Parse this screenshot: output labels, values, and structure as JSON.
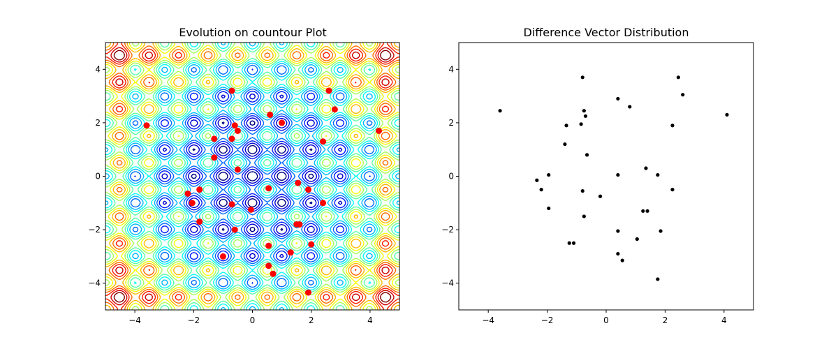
{
  "chart_data": [
    {
      "type": "contour",
      "title": "Evolution on countour Plot",
      "xlim": [
        -5,
        5
      ],
      "ylim": [
        -5,
        5
      ],
      "xticks": [
        -4,
        -2,
        0,
        2,
        4
      ],
      "yticks": [
        -4,
        -2,
        0,
        2,
        4
      ],
      "xtick_labels": [
        "−4",
        "−2",
        "0",
        "2",
        "4"
      ],
      "ytick_labels": [
        "−4",
        "−2",
        "0",
        "2",
        "4"
      ],
      "colormap": "jet",
      "background_color": "#ffffff",
      "point_color": "#ff0000",
      "points": [
        {
          "x": -3.6,
          "y": 1.9
        },
        {
          "x": -0.7,
          "y": 3.2
        },
        {
          "x": 2.6,
          "y": 3.2
        },
        {
          "x": 2.8,
          "y": 2.5
        },
        {
          "x": 4.3,
          "y": 1.7
        },
        {
          "x": 0.6,
          "y": 2.3
        },
        {
          "x": 1.0,
          "y": 2.0
        },
        {
          "x": -0.6,
          "y": 1.9
        },
        {
          "x": -0.5,
          "y": 1.7
        },
        {
          "x": -0.7,
          "y": 1.4
        },
        {
          "x": -1.3,
          "y": 1.4
        },
        {
          "x": 2.4,
          "y": 1.3
        },
        {
          "x": -1.3,
          "y": 0.7
        },
        {
          "x": -0.5,
          "y": 0.25
        },
        {
          "x": -2.2,
          "y": -0.65
        },
        {
          "x": -1.8,
          "y": -0.5
        },
        {
          "x": 0.55,
          "y": -0.45
        },
        {
          "x": 1.55,
          "y": -0.25
        },
        {
          "x": 1.9,
          "y": -0.5
        },
        {
          "x": -2.05,
          "y": -1.0
        },
        {
          "x": -0.7,
          "y": -1.05
        },
        {
          "x": 2.4,
          "y": -1.0
        },
        {
          "x": -1.8,
          "y": -1.7
        },
        {
          "x": -0.6,
          "y": -2.0
        },
        {
          "x": 1.5,
          "y": -1.8
        },
        {
          "x": 1.6,
          "y": -1.8
        },
        {
          "x": 0.55,
          "y": -2.6
        },
        {
          "x": 1.3,
          "y": -2.85
        },
        {
          "x": 2.0,
          "y": -2.55
        },
        {
          "x": -1.0,
          "y": -3.0
        },
        {
          "x": 0.55,
          "y": -3.35
        },
        {
          "x": 0.7,
          "y": -3.65
        },
        {
          "x": 1.9,
          "y": -4.35
        },
        {
          "x": -0.05,
          "y": -1.25
        }
      ]
    },
    {
      "type": "scatter",
      "title": "Difference Vector Distribution",
      "xlim": [
        -5,
        5
      ],
      "ylim": [
        -5,
        5
      ],
      "xticks": [
        -4,
        -2,
        0,
        2,
        4
      ],
      "yticks": [
        -4,
        -2,
        0,
        2,
        4
      ],
      "xtick_labels": [
        "−4",
        "−2",
        "0",
        "2",
        "4"
      ],
      "ytick_labels": [
        "−4",
        "−2",
        "0",
        "2",
        "4"
      ],
      "point_color": "#000000",
      "points": [
        {
          "x": -3.6,
          "y": 2.45
        },
        {
          "x": -0.8,
          "y": 3.7
        },
        {
          "x": 2.45,
          "y": 3.7
        },
        {
          "x": 2.6,
          "y": 3.05
        },
        {
          "x": 0.4,
          "y": 2.9
        },
        {
          "x": 0.8,
          "y": 2.6
        },
        {
          "x": -0.75,
          "y": 2.45
        },
        {
          "x": -0.7,
          "y": 2.25
        },
        {
          "x": 4.1,
          "y": 2.3
        },
        {
          "x": -1.35,
          "y": 1.9
        },
        {
          "x": -0.85,
          "y": 1.95
        },
        {
          "x": 2.25,
          "y": 1.9
        },
        {
          "x": -1.4,
          "y": 1.2
        },
        {
          "x": -0.65,
          "y": 0.8
        },
        {
          "x": 0.4,
          "y": 0.05
        },
        {
          "x": 1.35,
          "y": 0.3
        },
        {
          "x": 1.75,
          "y": 0.05
        },
        {
          "x": -1.95,
          "y": 0.05
        },
        {
          "x": -2.35,
          "y": -0.15
        },
        {
          "x": -2.2,
          "y": -0.5
        },
        {
          "x": -0.8,
          "y": -0.55
        },
        {
          "x": -0.2,
          "y": -0.75
        },
        {
          "x": 2.25,
          "y": -0.5
        },
        {
          "x": -1.95,
          "y": -1.2
        },
        {
          "x": -0.75,
          "y": -1.5
        },
        {
          "x": 1.25,
          "y": -1.3
        },
        {
          "x": 1.4,
          "y": -1.3
        },
        {
          "x": 1.85,
          "y": -2.05
        },
        {
          "x": 0.4,
          "y": -2.05
        },
        {
          "x": -1.25,
          "y": -2.5
        },
        {
          "x": -1.1,
          "y": -2.5
        },
        {
          "x": 1.05,
          "y": -2.35
        },
        {
          "x": 0.4,
          "y": -2.9
        },
        {
          "x": 0.55,
          "y": -3.15
        },
        {
          "x": 1.75,
          "y": -3.85
        }
      ]
    }
  ]
}
